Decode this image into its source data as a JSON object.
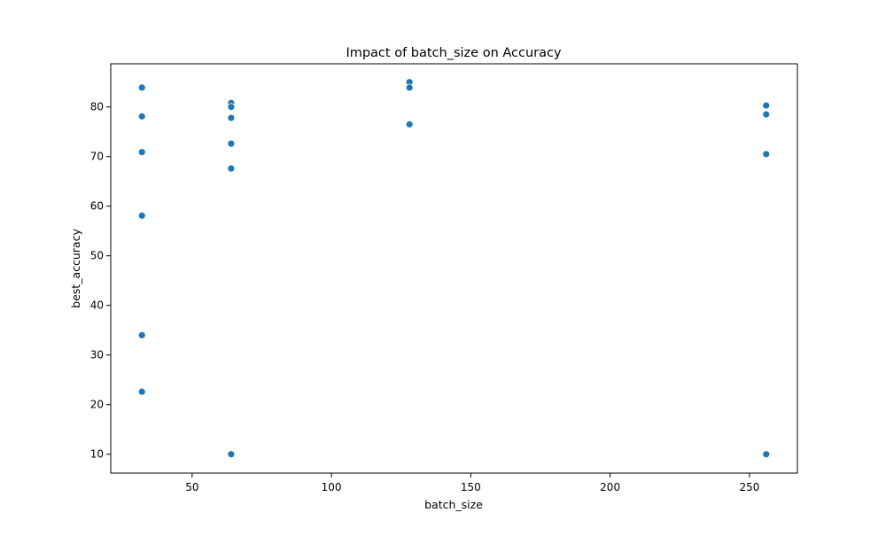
{
  "chart_data": {
    "type": "scatter",
    "title": "Impact of batch_size on Accuracy",
    "xlabel": "batch_size",
    "ylabel": "best_accuracy",
    "xlim": [
      20.8,
      267.2
    ],
    "ylim": [
      6.2,
      88.7
    ],
    "xticks": [
      50,
      100,
      150,
      200,
      250
    ],
    "yticks": [
      10,
      20,
      30,
      40,
      50,
      60,
      70,
      80
    ],
    "grid": false,
    "marker_color": "#1f77b4",
    "points": [
      {
        "x": 32,
        "y": 83.9
      },
      {
        "x": 32,
        "y": 78.1
      },
      {
        "x": 32,
        "y": 70.9
      },
      {
        "x": 32,
        "y": 58.1
      },
      {
        "x": 32,
        "y": 34.0
      },
      {
        "x": 32,
        "y": 22.6
      },
      {
        "x": 64,
        "y": 80.8
      },
      {
        "x": 64,
        "y": 80.0
      },
      {
        "x": 64,
        "y": 77.8
      },
      {
        "x": 64,
        "y": 72.6
      },
      {
        "x": 64,
        "y": 67.6
      },
      {
        "x": 64,
        "y": 10.0
      },
      {
        "x": 128,
        "y": 85.0
      },
      {
        "x": 128,
        "y": 83.9
      },
      {
        "x": 128,
        "y": 76.5
      },
      {
        "x": 256,
        "y": 80.3
      },
      {
        "x": 256,
        "y": 78.5
      },
      {
        "x": 256,
        "y": 70.5
      },
      {
        "x": 256,
        "y": 10.0
      }
    ]
  }
}
